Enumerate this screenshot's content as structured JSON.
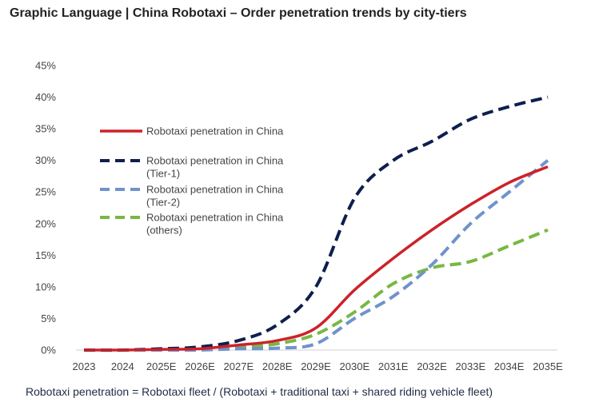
{
  "title": "Graphic Language | China Robotaxi – Order penetration trends by city-tiers",
  "footnote": "Robotaxi penetration = Robotaxi fleet / (Robotaxi + traditional taxi + shared riding vehicle fleet)",
  "chart_data": {
    "type": "line",
    "title": "",
    "xlabel": "",
    "ylabel": "",
    "x": [
      "2023",
      "2024",
      "2025E",
      "2026E",
      "2027E",
      "2028E",
      "2029E",
      "2030E",
      "2031E",
      "2032E",
      "2033E",
      "2034E",
      "2035E"
    ],
    "y_ticks": [
      "0%",
      "5%",
      "10%",
      "15%",
      "20%",
      "25%",
      "30%",
      "35%",
      "40%",
      "45%"
    ],
    "ylim": [
      0,
      45
    ],
    "y_unit": "%",
    "grid": false,
    "legend_position": "top-left",
    "series": [
      {
        "name": "Robotaxi penetration in China",
        "style": "solid",
        "color": "#cc2229",
        "values": [
          0,
          0,
          0.1,
          0.2,
          0.8,
          1.5,
          3.5,
          9.5,
          14.5,
          19,
          23,
          26.5,
          29
        ]
      },
      {
        "name": "Robotaxi penetration in China (Tier-1)",
        "style": "dashed",
        "color": "#0e1f4d",
        "values": [
          0,
          0,
          0.2,
          0.5,
          1.5,
          4,
          10,
          24,
          30,
          33,
          36.5,
          38.5,
          40
        ]
      },
      {
        "name": "Robotaxi penetration in China (Tier-2)",
        "style": "dashed",
        "color": "#6f93cc",
        "values": [
          0,
          0,
          0,
          0,
          0.2,
          0.3,
          1,
          5,
          8.5,
          13.5,
          20,
          25,
          30
        ]
      },
      {
        "name": "Robotaxi penetration in China (others)",
        "style": "dashed",
        "color": "#78b843",
        "values": [
          0,
          0,
          0,
          0.1,
          0.4,
          1,
          2.5,
          6,
          10.5,
          13,
          14,
          16.5,
          19
        ]
      }
    ],
    "legend": [
      {
        "line1": "Robotaxi penetration in China",
        "line2": ""
      },
      {
        "line1": "Robotaxi penetration in China",
        "line2": "(Tier-1)"
      },
      {
        "line1": "Robotaxi penetration in China",
        "line2": "(Tier-2)"
      },
      {
        "line1": "Robotaxi penetration in China",
        "line2": "(others)"
      }
    ]
  }
}
